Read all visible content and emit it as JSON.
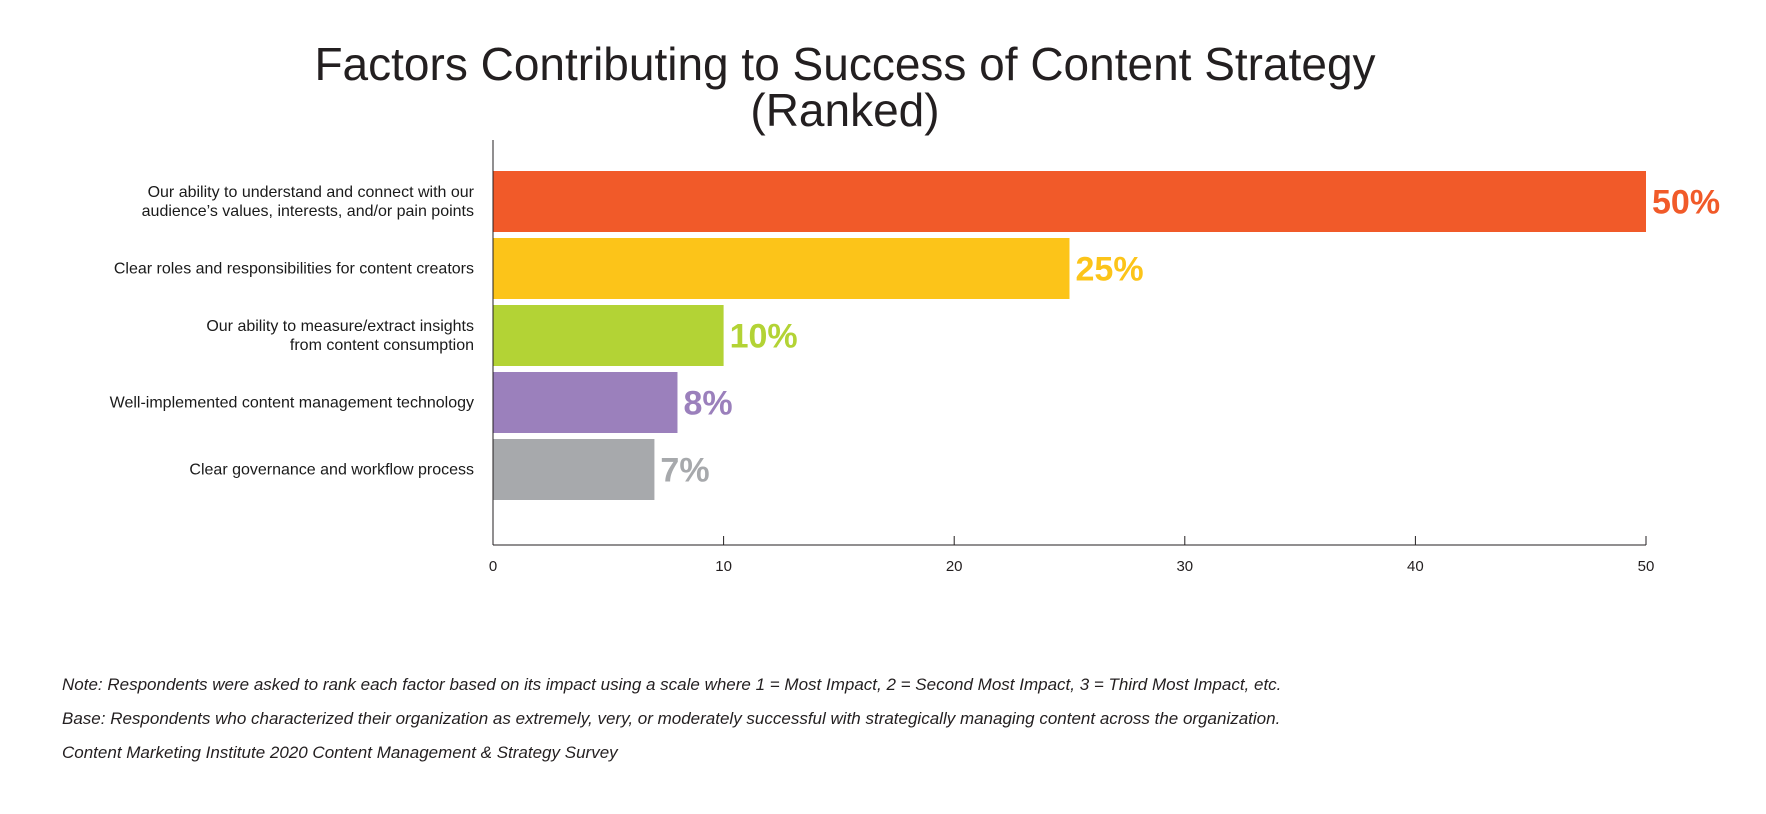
{
  "chart_data": {
    "type": "bar",
    "orientation": "horizontal",
    "title_lines": [
      "Factors Contributing to Success of Content Strategy",
      "(Ranked)"
    ],
    "categories": [
      [
        "Our ability to understand and connect with our",
        "audience’s values, interests, and/or pain points"
      ],
      [
        "Clear roles and responsibilities for content creators"
      ],
      [
        "Our ability to measure/extract insights",
        "from content consumption"
      ],
      [
        "Well-implemented content management technology"
      ],
      [
        "Clear governance and workflow process"
      ]
    ],
    "values": [
      50,
      25,
      10,
      8,
      7
    ],
    "data_labels": [
      "50%",
      "25%",
      "10%",
      "8%",
      "7%"
    ],
    "colors": [
      "#f15a29",
      "#fcc419",
      "#b3d335",
      "#9b80bc",
      "#a7a9ac"
    ],
    "xlim": [
      0,
      50
    ],
    "x_ticks": [
      0,
      10,
      20,
      30,
      40,
      50
    ],
    "grid": false,
    "legend": "none"
  },
  "notes": [
    "Note: Respondents were asked to rank each factor based on its impact using a scale where 1 = Most Impact, 2 = Second Most Impact, 3 = Third Most Impact, etc.",
    "Base: Respondents who characterized their organization as extremely, very, or moderately successful with strategically managing content across the organization.",
    "Content Marketing Institute 2020 Content Management & Strategy Survey"
  ]
}
